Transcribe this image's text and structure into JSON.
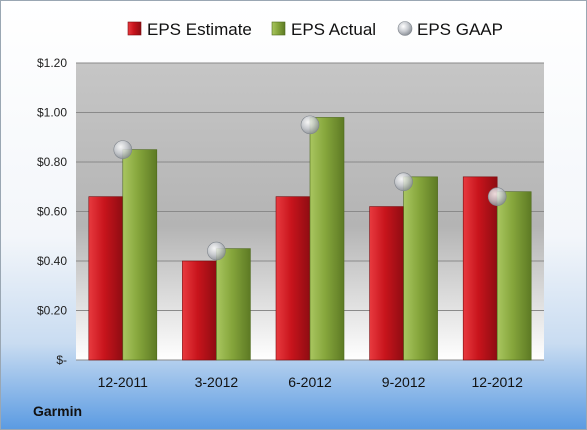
{
  "company": "Garmin",
  "chart_data": {
    "type": "bar",
    "categories": [
      "12-2011",
      "3-2012",
      "6-2012",
      "9-2012",
      "12-2012"
    ],
    "series": [
      {
        "name": "EPS Estimate",
        "type": "bar",
        "color": "#c8141c",
        "values": [
          0.66,
          0.4,
          0.66,
          0.62,
          0.74
        ]
      },
      {
        "name": "EPS Actual",
        "type": "bar",
        "color": "#86a63c",
        "values": [
          0.85,
          0.45,
          0.98,
          0.74,
          0.68
        ]
      },
      {
        "name": "EPS GAAP",
        "type": "scatter",
        "color": "#b8bcc2",
        "values": [
          0.85,
          0.44,
          0.95,
          0.72,
          0.66
        ]
      }
    ],
    "ylim": [
      0,
      1.2
    ],
    "yticks": [
      0,
      0.2,
      0.4,
      0.6,
      0.8,
      1.0,
      1.2
    ],
    "ytick_labels": [
      "$-",
      "$0.20",
      "$0.40",
      "$0.60",
      "$0.80",
      "$1.00",
      "$1.20"
    ],
    "legend_position": "top",
    "grid": true
  }
}
